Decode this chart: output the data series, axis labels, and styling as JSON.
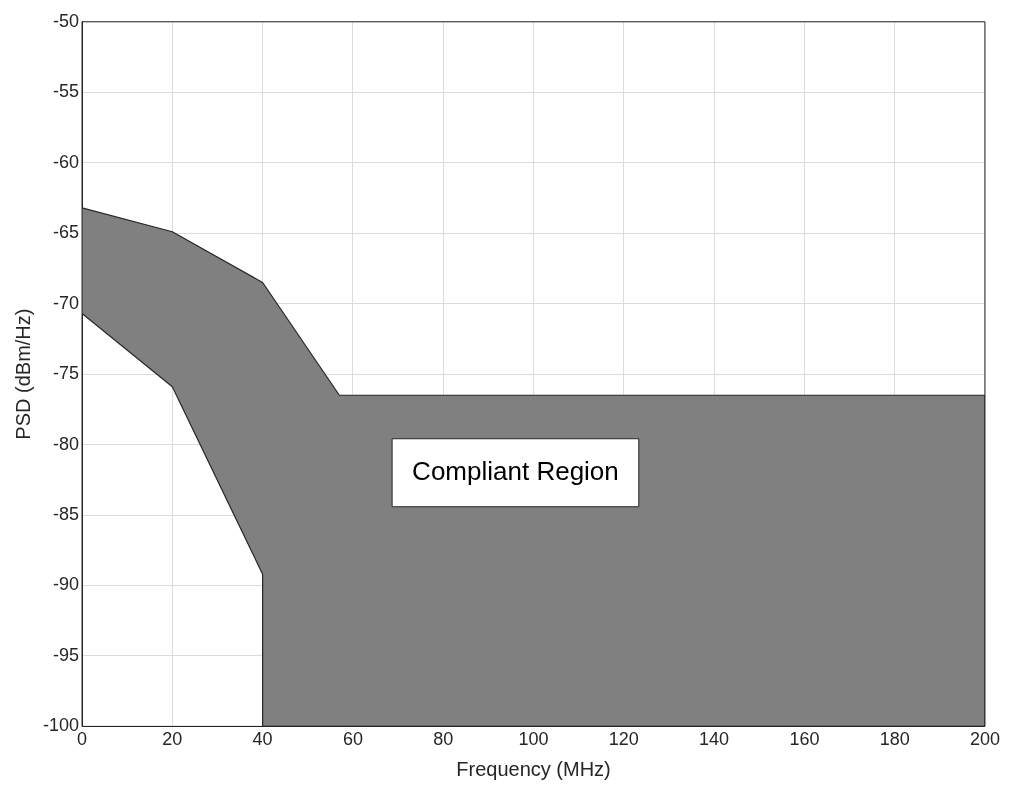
{
  "chart_data": {
    "type": "area",
    "xlabel": "Frequency (MHz)",
    "ylabel": "PSD (dBm/Hz)",
    "series": [
      {
        "color": "#808080",
        "x": [
          0,
          20,
          40,
          57,
          200,
          200,
          40,
          40,
          20,
          0
        ],
        "values": [
          -63.2,
          -64.9,
          -68.5,
          -76.5,
          -76.5,
          -100,
          -100,
          -89.2,
          -75.9,
          -70.7
        ]
      }
    ],
    "xlim": [
      0,
      200
    ],
    "xticks": [
      0,
      20,
      40,
      60,
      80,
      100,
      120,
      140,
      160,
      180,
      200
    ],
    "ylim": [
      -100,
      -50
    ],
    "yticks": [
      -100,
      -95,
      -90,
      -85,
      -80,
      -75,
      -70,
      -65,
      -60,
      -55,
      -50
    ],
    "grid": true,
    "legend": false,
    "annotations": [
      "Compliant Region"
    ]
  }
}
